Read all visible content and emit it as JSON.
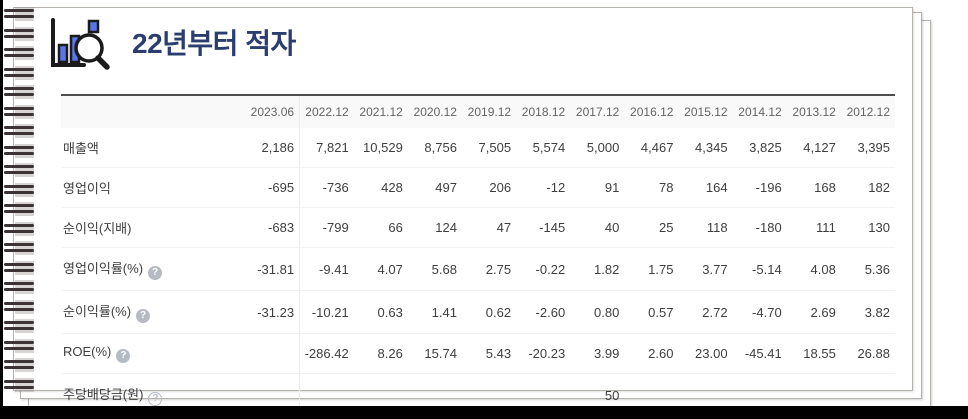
{
  "page": {
    "title": "22년부터 적자",
    "title_color": "#2c3e70",
    "accent_blue": "#5b74e8",
    "icons": {
      "header_icon": "bar-chart-magnifier-icon",
      "help_icon_glyph": "?"
    }
  },
  "table": {
    "columns": [
      "2023.06",
      "2022.12",
      "2021.12",
      "2020.12",
      "2019.12",
      "2018.12",
      "2017.12",
      "2016.12",
      "2015.12",
      "2014.12",
      "2013.12",
      "2012.12"
    ],
    "rows": [
      {
        "label": "매출액",
        "help": null,
        "values": [
          "2,186",
          "7,821",
          "10,529",
          "8,756",
          "7,505",
          "5,574",
          "5,000",
          "4,467",
          "4,345",
          "3,825",
          "4,127",
          "3,395"
        ]
      },
      {
        "label": "영업이익",
        "help": null,
        "values": [
          "-695",
          "-736",
          "428",
          "497",
          "206",
          "-12",
          "91",
          "78",
          "164",
          "-196",
          "168",
          "182"
        ]
      },
      {
        "label": "순이익(지배)",
        "help": null,
        "values": [
          "-683",
          "-799",
          "66",
          "124",
          "47",
          "-145",
          "40",
          "25",
          "118",
          "-180",
          "111",
          "130"
        ]
      },
      {
        "label": "영업이익률(%)",
        "help": "filled",
        "values": [
          "-31.81",
          "-9.41",
          "4.07",
          "5.68",
          "2.75",
          "-0.22",
          "1.82",
          "1.75",
          "3.77",
          "-5.14",
          "4.08",
          "5.36"
        ]
      },
      {
        "label": "순이익률(%)",
        "help": "filled",
        "values": [
          "-31.23",
          "-10.21",
          "0.63",
          "1.41",
          "0.62",
          "-2.60",
          "0.80",
          "0.57",
          "2.72",
          "-4.70",
          "2.69",
          "3.82"
        ]
      },
      {
        "label": "ROE(%)",
        "help": "filled",
        "values": [
          "",
          "-286.42",
          "8.26",
          "15.74",
          "5.43",
          "-20.23",
          "3.99",
          "2.60",
          "23.00",
          "-45.41",
          "18.55",
          "26.88"
        ]
      },
      {
        "label": "주당배당금(원)",
        "help": "outline",
        "values": [
          "",
          "",
          "",
          "",
          "",
          "",
          "50",
          "",
          "",
          "",
          "",
          ""
        ]
      }
    ]
  }
}
